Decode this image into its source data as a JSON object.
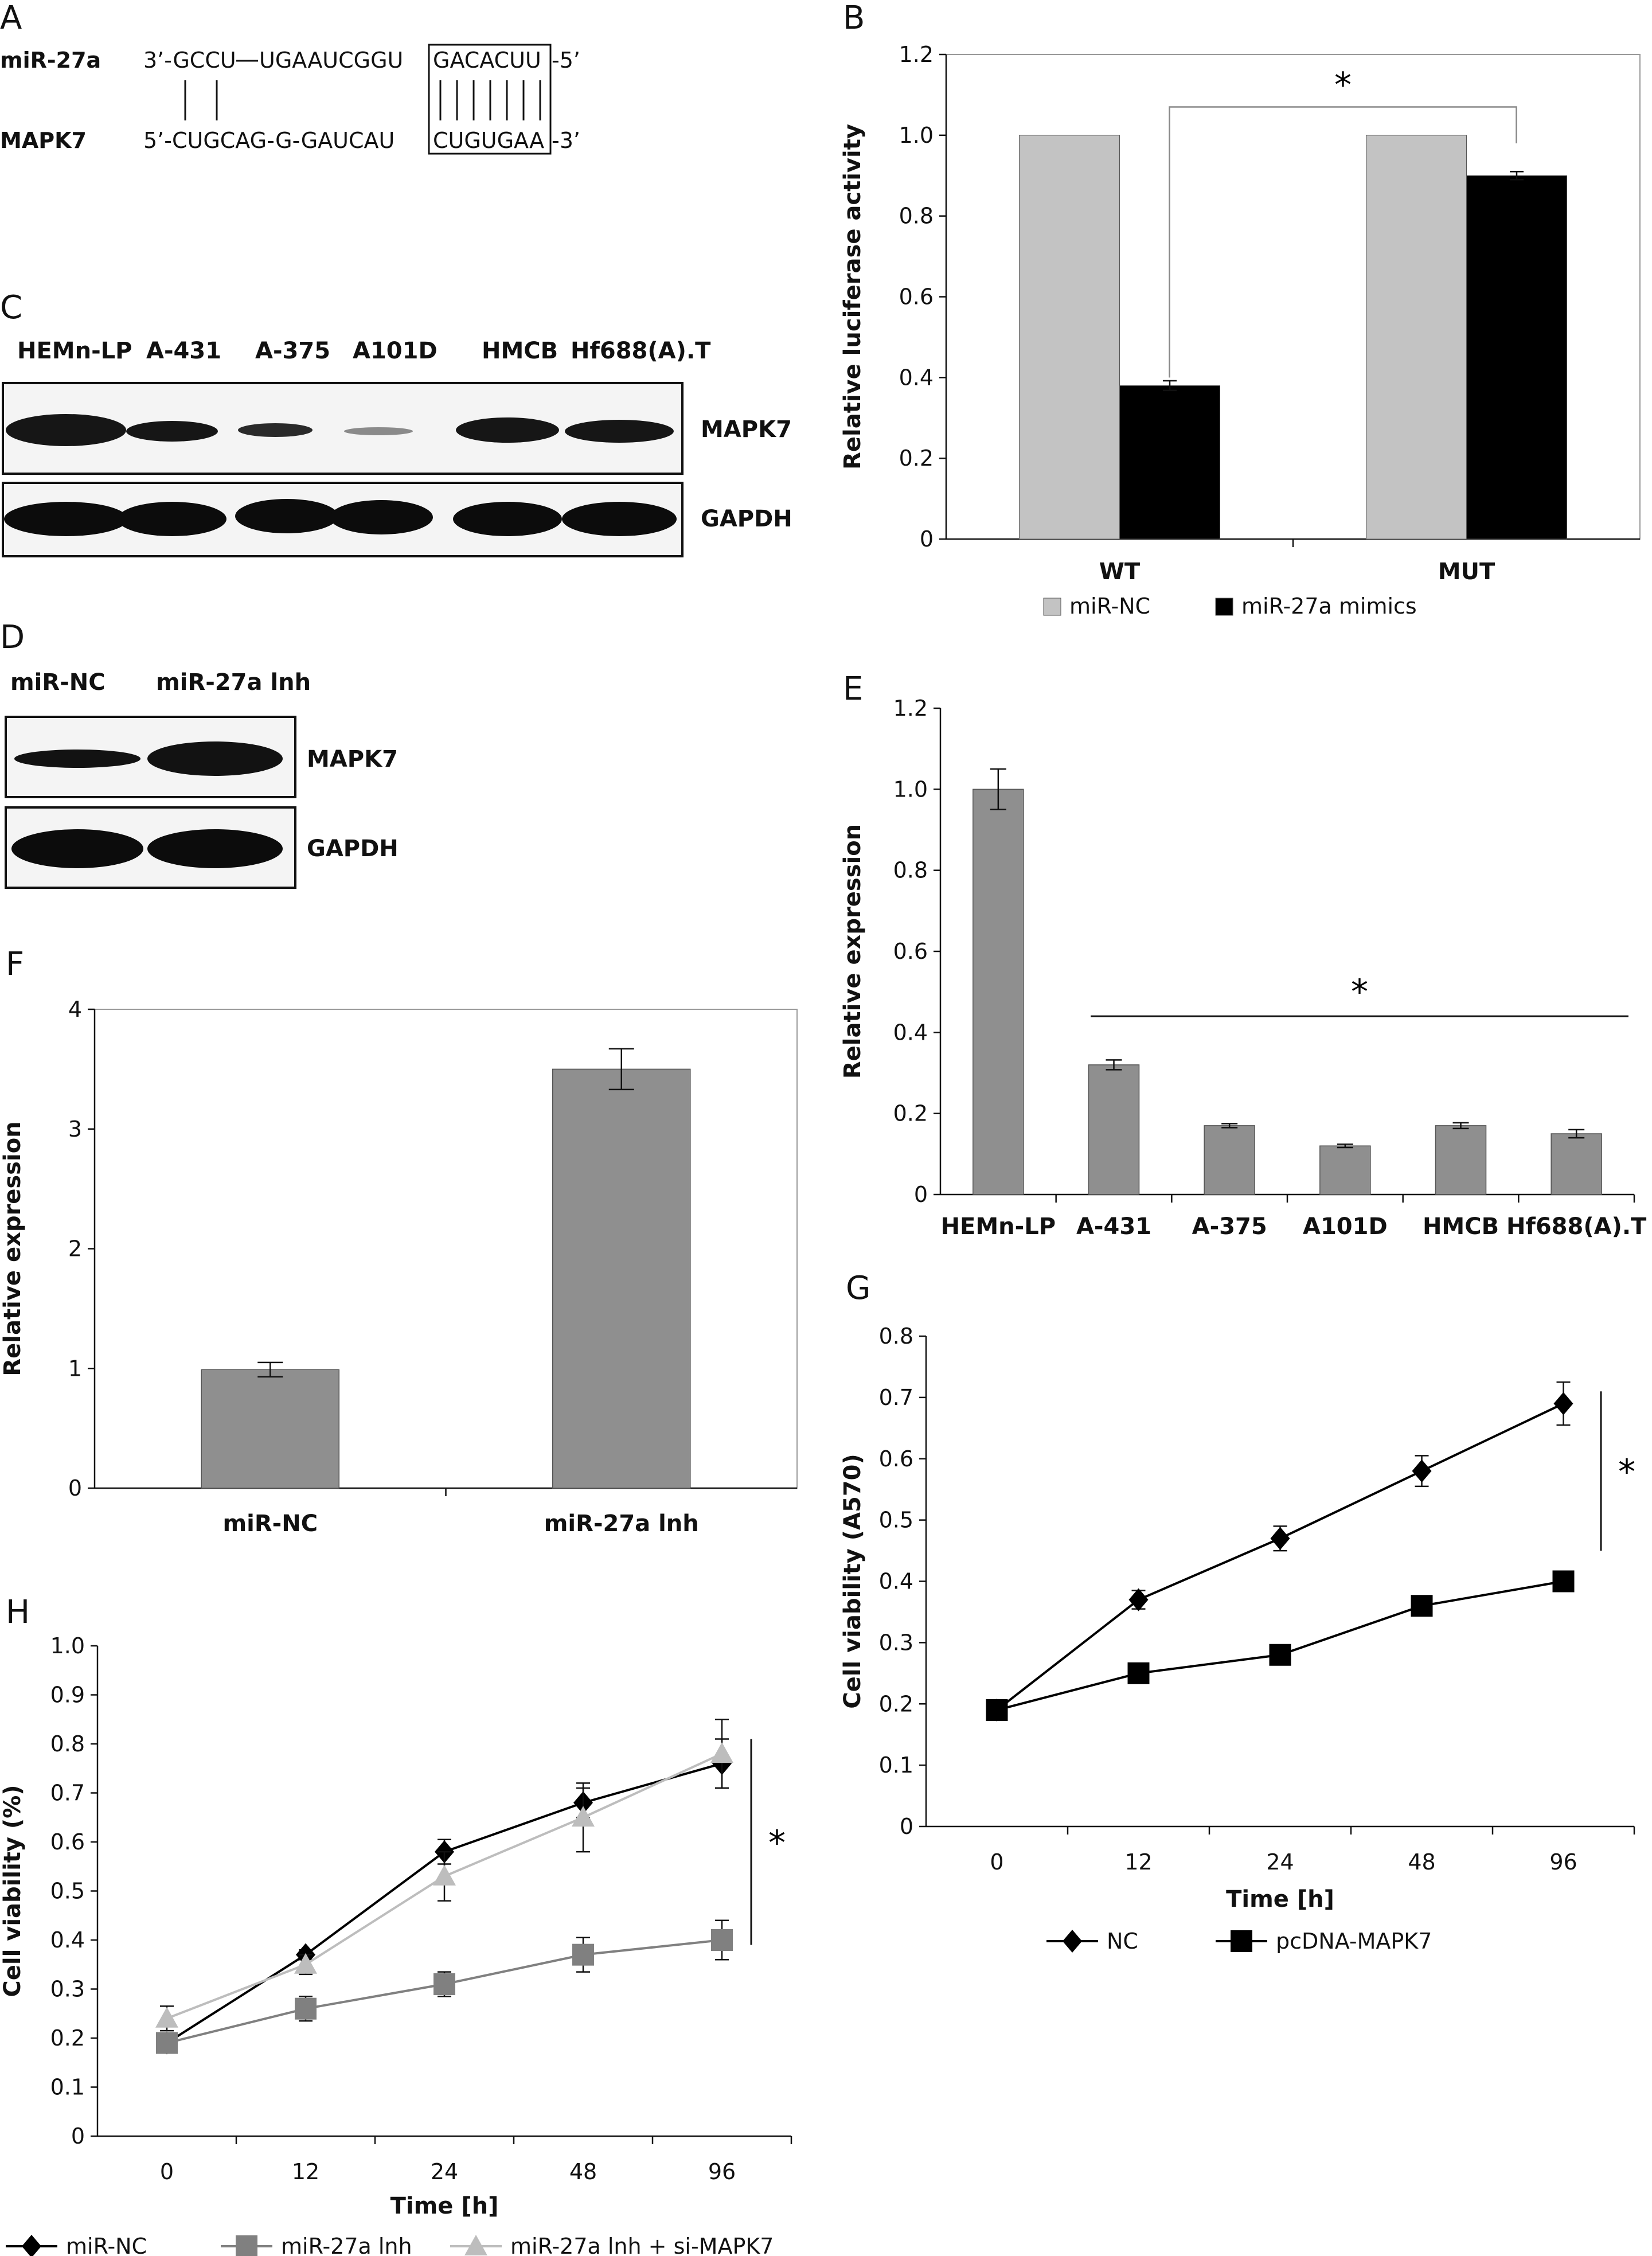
{
  "panel_A": {
    "letter": "A",
    "mir_name": "miR-27a",
    "mir_seq_left": "3’-GCCU",
    "mir_seq_mid": "UGAAUCGGU",
    "mir_seed": "GACACUU",
    "mir_end": "-5’",
    "target_name": "MAPK7",
    "target_seq_left": "5’-CUGCAG-G-GAUCAU",
    "target_seed": "CUGUGAA",
    "target_end": "-3’"
  },
  "panel_C": {
    "letter": "C",
    "lanes": [
      "HEMn-LP",
      "A-431",
      "A-375",
      "A101D",
      "HMCB",
      "Hf688(A).T"
    ],
    "rows": [
      "MAPK7",
      "GAPDH"
    ]
  },
  "panel_D": {
    "letter": "D",
    "lanes": [
      "miR-NC",
      "miR-27a lnh"
    ],
    "rows": [
      "MAPK7",
      "GAPDH"
    ]
  },
  "chart_data": [
    {
      "panel": "B",
      "type": "bar",
      "ylabel": "Relative luciferase activity",
      "ylim": [
        0,
        1.2
      ],
      "yticks": [
        "0",
        "0.2",
        "0.4",
        "0.6",
        "0.8",
        "1.0",
        "1.2"
      ],
      "categories": [
        "WT",
        "MUT"
      ],
      "series": [
        {
          "name": "miR-NC",
          "values": [
            1.0,
            1.0
          ],
          "errors": [
            0,
            0
          ],
          "color": "#c3c3c3"
        },
        {
          "name": "miR-27a mimics",
          "values": [
            0.38,
            0.9
          ],
          "errors": [
            0.012,
            0.01
          ],
          "color": "#000000"
        }
      ],
      "annotation": "*",
      "grid": false,
      "legend_position": "bottom"
    },
    {
      "panel": "E",
      "type": "bar",
      "ylabel": "Relative expression",
      "ylim": [
        0,
        1.2
      ],
      "yticks": [
        "0",
        "0.2",
        "0.4",
        "0.6",
        "0.8",
        "1.0",
        "1.2"
      ],
      "categories": [
        "HEMn-LP",
        "A-431",
        "A-375",
        "A101D",
        "HMCB",
        "Hf688(A).T"
      ],
      "values": [
        1.0,
        0.32,
        0.17,
        0.12,
        0.17,
        0.15
      ],
      "errors": [
        0.05,
        0.012,
        0.005,
        0.004,
        0.007,
        0.01
      ],
      "color": "#8f8f8f",
      "annotation": "*",
      "grid": false
    },
    {
      "panel": "F",
      "type": "bar",
      "ylabel": "Relative expression",
      "ylim": [
        0,
        4
      ],
      "yticks": [
        "0",
        "1",
        "2",
        "3",
        "4"
      ],
      "categories": [
        "miR-NC",
        "miR-27a lnh"
      ],
      "values": [
        0.99,
        3.5
      ],
      "errors": [
        0.06,
        0.17
      ],
      "color": "#8f8f8f",
      "grid": false
    },
    {
      "panel": "G",
      "type": "line",
      "xlabel": "Time [h]",
      "ylabel": "Cell viability (A570)",
      "ylim": [
        0,
        0.8
      ],
      "yticks": [
        "0",
        "0.1",
        "0.2",
        "0.3",
        "0.4",
        "0.5",
        "0.6",
        "0.7",
        "0.8"
      ],
      "categories": [
        "0",
        "12",
        "24",
        "48",
        "96"
      ],
      "series": [
        {
          "name": "NC",
          "values": [
            0.19,
            0.37,
            0.47,
            0.58,
            0.69
          ],
          "errors": [
            0,
            0.015,
            0.02,
            0.025,
            0.035
          ],
          "color": "#000000",
          "marker": "diamond"
        },
        {
          "name": "pcDNA-MAPK7",
          "values": [
            0.19,
            0.25,
            0.28,
            0.36,
            0.4
          ],
          "errors": [
            0,
            0,
            0,
            0,
            0
          ],
          "color": "#000000",
          "marker": "square"
        }
      ],
      "annotation": "*",
      "grid": false,
      "legend_position": "bottom"
    },
    {
      "panel": "H",
      "type": "line",
      "xlabel": "Time [h]",
      "ylabel": "Cell viability (%)",
      "ylim": [
        0,
        1.0
      ],
      "yticks": [
        "0",
        "0.1",
        "0.2",
        "0.3",
        "0.4",
        "0.5",
        "0.6",
        "0.7",
        "0.8",
        "0.9",
        "1.0"
      ],
      "categories": [
        "0",
        "12",
        "24",
        "48",
        "96"
      ],
      "series": [
        {
          "name": "miR-NC",
          "values": [
            0.19,
            0.37,
            0.58,
            0.68,
            0.76
          ],
          "errors": [
            0.02,
            0.01,
            0.025,
            0.03,
            0.05
          ],
          "color": "#000000",
          "marker": "diamond"
        },
        {
          "name": "miR-27a lnh",
          "values": [
            0.19,
            0.26,
            0.31,
            0.37,
            0.4
          ],
          "errors": [
            0.02,
            0.025,
            0.025,
            0.035,
            0.04
          ],
          "color": "#808080",
          "marker": "square"
        },
        {
          "name": "miR-27a lnh + si-MAPK7",
          "values": [
            0.24,
            0.35,
            0.53,
            0.65,
            0.78
          ],
          "errors": [
            0.025,
            0.02,
            0.05,
            0.07,
            0.07
          ],
          "color": "#bdbdbd",
          "marker": "triangle"
        }
      ],
      "annotation": "*",
      "grid": false,
      "legend_position": "bottom"
    }
  ]
}
